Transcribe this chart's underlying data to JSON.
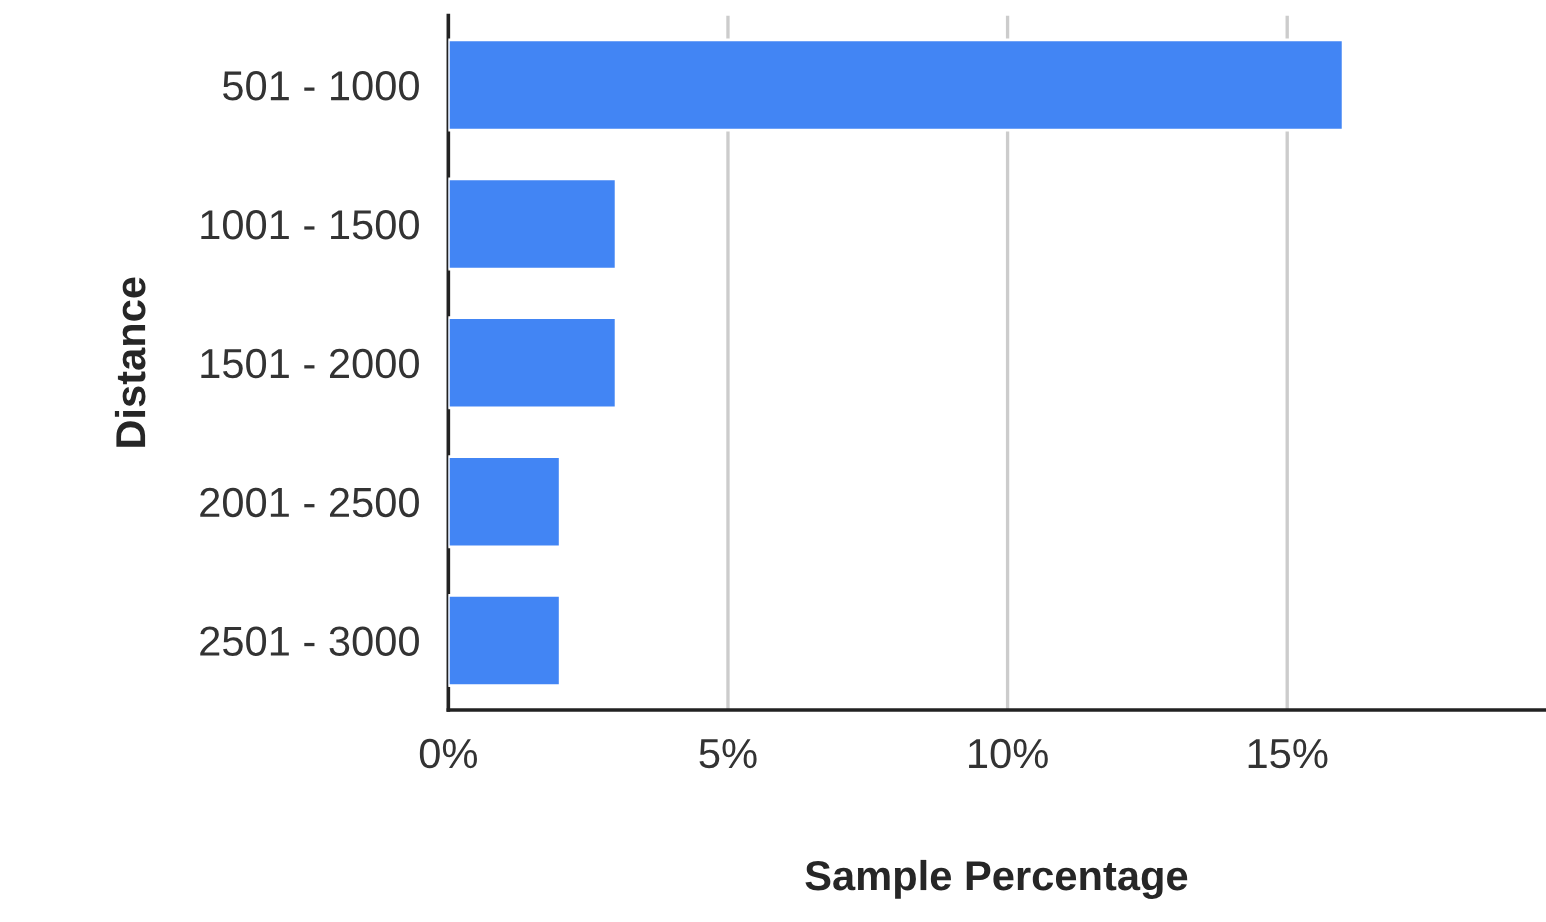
{
  "chart_data": {
    "type": "bar",
    "orientation": "horizontal",
    "xlabel": "Sample Percentage",
    "ylabel": "Distance",
    "categories": [
      "501 - 1000",
      "1001 - 1500",
      "1501 - 2000",
      "2001 - 2500",
      "2501 - 3000"
    ],
    "values": [
      16,
      3,
      3,
      2,
      2
    ],
    "color": "#4285f4",
    "xlim": [
      0,
      19.6
    ],
    "xticks": [
      {
        "value": 0,
        "label": "0%"
      },
      {
        "value": 5,
        "label": "5%"
      },
      {
        "value": 10,
        "label": "10%"
      },
      {
        "value": 15,
        "label": "15%"
      }
    ],
    "grid": "x",
    "legend": false
  }
}
